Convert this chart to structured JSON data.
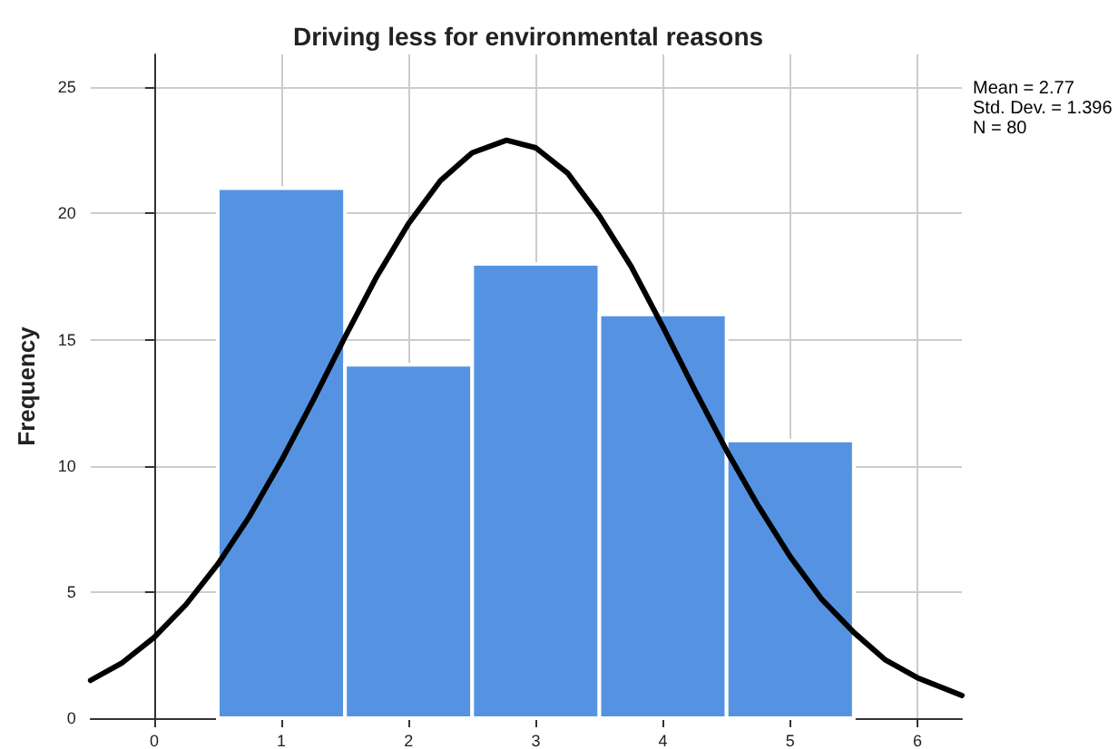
{
  "chart_data": {
    "type": "histogram",
    "title": "Driving less for environmental reasons",
    "ylabel": "Frequency",
    "bins": [
      0.5,
      1.5,
      2.5,
      3.5,
      4.5,
      5.5
    ],
    "values": [
      21,
      14,
      18,
      16,
      11
    ],
    "color": "#5593e2",
    "series": [
      {
        "type": "line",
        "color": "#000000",
        "x": [
          -0.5,
          -0.25,
          0,
          0.25,
          0.5,
          0.75,
          1,
          1.25,
          1.5,
          1.75,
          2,
          2.25,
          2.5,
          2.77,
          3,
          3.25,
          3.5,
          3.75,
          4,
          4.25,
          4.5,
          4.75,
          5,
          5.25,
          5.5,
          5.75,
          6,
          6.35
        ],
        "values": [
          1.5,
          2.2,
          3.2,
          4.5,
          6.1,
          8.0,
          10.2,
          12.6,
          15.1,
          17.5,
          19.6,
          21.3,
          22.4,
          22.9,
          22.6,
          21.6,
          19.9,
          17.9,
          15.5,
          13.0,
          10.6,
          8.4,
          6.4,
          4.7,
          3.4,
          2.3,
          1.6,
          0.9
        ]
      }
    ],
    "xlim": [
      -0.5,
      6.35
    ],
    "xticks": [
      0,
      1,
      2,
      3,
      4,
      5,
      6
    ],
    "ylim": [
      0,
      26.3
    ],
    "yticks": [
      0,
      5,
      10,
      15,
      20,
      25
    ],
    "grid": true,
    "marker": "none",
    "line_style": "solid",
    "annotations": [
      "Mean = 2.77",
      "Std. Dev. = 1.396",
      "N = 80"
    ]
  }
}
